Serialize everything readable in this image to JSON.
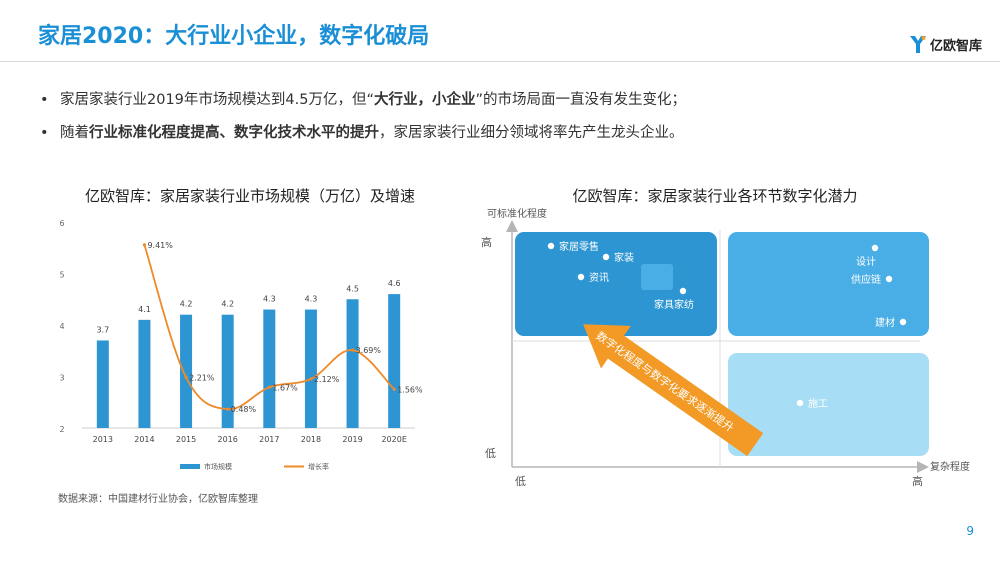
{
  "header": {
    "title": "家居2020：大行业小企业，数字化破局",
    "logo_text": "亿欧智库"
  },
  "bullets": [
    {
      "parts": [
        {
          "text": "家居家装行业2019年市场规模达到4.5万亿，但“",
          "bold": false
        },
        {
          "text": "大行业，小企业",
          "bold": true
        },
        {
          "text": "”的市场局面一直没有发生变化；",
          "bold": false
        }
      ]
    },
    {
      "parts": [
        {
          "text": "随着",
          "bold": false
        },
        {
          "text": "行业标准化程度提高、数字化技术水平的提升",
          "bold": true
        },
        {
          "text": "，家居家装行业细分领域将率先产生龙头企业。",
          "bold": false
        }
      ]
    }
  ],
  "left_chart_title": "亿欧智库：家居家装行业市场规模（万亿）及增速",
  "right_chart_title": "亿欧智库：家居家装行业各环节数字化潜力",
  "source": "数据来源：中国建材行业协会，亿欧智库整理",
  "page_number": "9",
  "chart_data": [
    {
      "type": "bar",
      "categories": [
        "2013",
        "2014",
        "2015",
        "2016",
        "2017",
        "2018",
        "2019",
        "2020E"
      ],
      "series": [
        {
          "name": "市场规模",
          "values": [
            3.7,
            4.1,
            4.2,
            4.2,
            4.3,
            4.3,
            4.5,
            4.6
          ],
          "labels": [
            "3.7",
            "4.1",
            "4.2",
            "4.2",
            "4.3",
            "4.3",
            "4.5",
            "4.6"
          ],
          "color": "#2e95d3"
        },
        {
          "name": "增长率",
          "type": "line",
          "values": [
            null,
            9.41,
            2.21,
            0.48,
            1.67,
            2.12,
            3.69,
            1.56
          ],
          "labels": [
            "",
            "9.41%",
            "2.21%",
            "0.48%",
            "1.67%",
            "2.12%",
            "3.69%",
            "1.56%"
          ],
          "color": "#ef8a2a"
        }
      ],
      "ylim": [
        2,
        6
      ],
      "yticks": [
        "2",
        "3",
        "4",
        "5",
        "6"
      ],
      "legend_position": "bottom"
    },
    {
      "type": "quadrant",
      "y_axis_label": "可标准化程度",
      "x_axis_label": "复杂程度",
      "y_high": "高",
      "y_low": "低",
      "x_low": "低",
      "x_high": "高",
      "quadrants": [
        {
          "position": "top-left",
          "color": "#2e95d3",
          "points": [
            {
              "label": "家居零售"
            },
            {
              "label": "家装"
            },
            {
              "label": "资讯"
            },
            {
              "label": "家具家纺"
            }
          ]
        },
        {
          "position": "top-right",
          "color": "#4aaee6",
          "points": [
            {
              "label": "设计"
            },
            {
              "label": "供应链"
            },
            {
              "label": "建材"
            }
          ]
        },
        {
          "position": "bottom-right",
          "color": "#a8def5",
          "points": [
            {
              "label": "施工"
            }
          ]
        }
      ],
      "arrow_label": "数字化程度与数字化要求逐渐提升",
      "arrow_color": "#f39a26"
    }
  ]
}
